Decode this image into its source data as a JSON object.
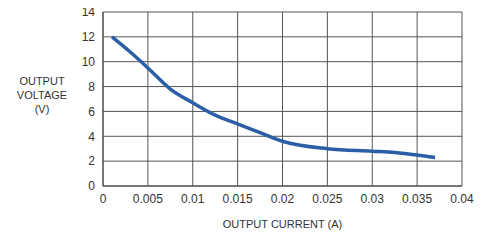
{
  "chart_data": {
    "type": "line",
    "x_label": "OUTPUT CURRENT (A)",
    "y_label": "OUTPUT VOLTAGE (V)",
    "x": [
      0.001,
      0.003,
      0.005,
      0.0075,
      0.01,
      0.0125,
      0.015,
      0.0175,
      0.02,
      0.025,
      0.03,
      0.0325,
      0.035,
      0.037
    ],
    "values": [
      12,
      10.8,
      9.5,
      7.8,
      6.7,
      5.7,
      5.0,
      4.3,
      3.6,
      3.0,
      2.8,
      2.7,
      2.5,
      2.3
    ],
    "color": "#2b5ea7",
    "xlim": [
      0,
      0.04
    ],
    "xticks": [
      0,
      0.005,
      0.01,
      0.015,
      0.02,
      0.025,
      0.03,
      0.035,
      0.04
    ],
    "ylim": [
      0,
      14
    ],
    "yticks": [
      0,
      2,
      4,
      6,
      8,
      10,
      12,
      14
    ],
    "grid": true
  }
}
